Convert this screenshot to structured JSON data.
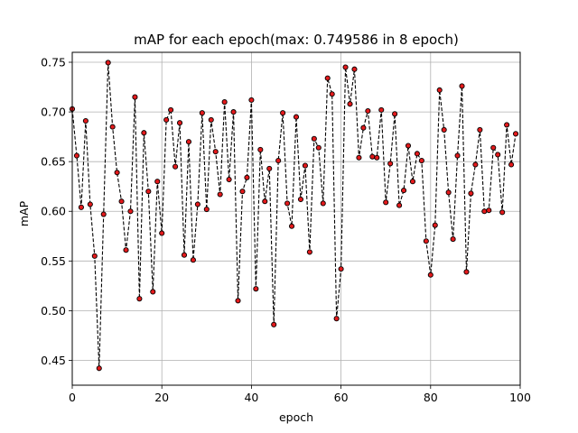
{
  "chart_data": {
    "type": "line",
    "title": "mAP for each epoch(max: 0.749586 in 8 epoch)",
    "xlabel": "epoch",
    "ylabel": "mAP",
    "xlim": [
      0,
      100
    ],
    "ylim": [
      0.425,
      0.76
    ],
    "xticks": [
      0,
      20,
      40,
      60,
      80,
      100
    ],
    "yticks": [
      0.45,
      0.5,
      0.55,
      0.6,
      0.65,
      0.7,
      0.75
    ],
    "xtick_labels": [
      "0",
      "20",
      "40",
      "60",
      "80",
      "100"
    ],
    "ytick_labels": [
      "0.45",
      "0.50",
      "0.55",
      "0.60",
      "0.65",
      "0.70",
      "0.75"
    ],
    "grid": true,
    "line_style": "dashed",
    "line_color": "#000000",
    "marker_color": "#e41a1c",
    "marker_edge_color": "#000000",
    "series": [
      {
        "x": [
          0,
          1,
          2,
          3,
          4,
          5,
          6,
          7,
          8,
          9,
          10,
          11,
          12,
          13,
          14,
          15,
          16,
          17,
          18,
          19,
          20,
          21,
          22,
          23,
          24,
          25,
          26,
          27,
          28,
          29,
          30,
          31,
          32,
          33,
          34,
          35,
          36,
          37,
          38,
          39,
          40,
          41,
          42,
          43,
          44,
          45,
          46,
          47,
          48,
          49,
          50,
          51,
          52,
          53,
          54,
          55,
          56,
          57,
          58,
          59,
          60,
          61,
          62,
          63,
          64,
          65,
          66,
          67,
          68,
          69,
          70,
          71,
          72,
          73,
          74,
          75,
          76,
          77,
          78,
          79,
          80,
          81,
          82,
          83,
          84,
          85,
          86,
          87,
          88,
          89,
          90,
          91,
          92,
          93,
          94,
          95,
          96,
          97,
          98,
          99
        ],
        "values": [
          0.703,
          0.656,
          0.604,
          0.691,
          0.607,
          0.555,
          0.442,
          0.597,
          0.7496,
          0.685,
          0.639,
          0.61,
          0.561,
          0.6,
          0.715,
          0.512,
          0.679,
          0.62,
          0.519,
          0.63,
          0.578,
          0.692,
          0.702,
          0.645,
          0.689,
          0.556,
          0.67,
          0.551,
          0.607,
          0.699,
          0.602,
          0.692,
          0.66,
          0.617,
          0.71,
          0.632,
          0.7,
          0.51,
          0.62,
          0.634,
          0.712,
          0.522,
          0.662,
          0.61,
          0.643,
          0.486,
          0.651,
          0.699,
          0.608,
          0.585,
          0.695,
          0.612,
          0.646,
          0.559,
          0.673,
          0.664,
          0.608,
          0.734,
          0.718,
          0.492,
          0.542,
          0.745,
          0.708,
          0.743,
          0.654,
          0.684,
          0.701,
          0.655,
          0.654,
          0.702,
          0.609,
          0.648,
          0.698,
          0.606,
          0.621,
          0.666,
          0.63,
          0.658,
          0.651,
          0.57,
          0.536,
          0.586,
          0.722,
          0.682,
          0.619,
          0.572,
          0.656,
          0.726,
          0.539,
          0.618,
          0.647,
          0.682,
          0.6,
          0.601,
          0.664,
          0.657,
          0.599,
          0.687,
          0.647,
          0.678
        ]
      }
    ]
  }
}
